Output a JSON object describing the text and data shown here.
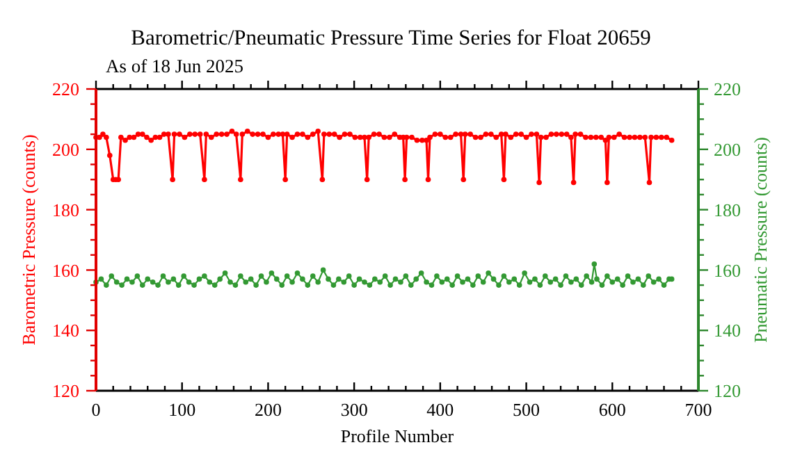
{
  "chart_data": {
    "type": "line",
    "title": "Barometric/Pneumatic Pressure Time Series for Float 20659",
    "subtitle": "As of 18 Jun 2025",
    "xlabel": "Profile Number",
    "ylabel": "Barometric Pressure (counts)",
    "y2label": "Pneumatic Pressure (counts)",
    "marker": "circle",
    "xlim": [
      0,
      700
    ],
    "xticks": [
      0,
      {
        "value": 20,
        "label": null
      },
      {
        "value": 40,
        "label": null
      },
      {
        "value": 60,
        "label": null
      },
      {
        "value": 80,
        "label": null
      },
      100,
      {
        "value": 120,
        "label": null
      },
      {
        "value": 140,
        "label": null
      },
      {
        "value": 160,
        "label": null
      },
      {
        "value": 180,
        "label": null
      },
      200,
      {
        "value": 220,
        "label": null
      },
      {
        "value": 240,
        "label": null
      },
      {
        "value": 260,
        "label": null
      },
      {
        "value": 280,
        "label": null
      },
      300,
      {
        "value": 320,
        "label": null
      },
      {
        "value": 340,
        "label": null
      },
      {
        "value": 360,
        "label": null
      },
      {
        "value": 380,
        "label": null
      },
      400,
      {
        "value": 420,
        "label": null
      },
      {
        "value": 440,
        "label": null
      },
      {
        "value": 460,
        "label": null
      },
      {
        "value": 480,
        "label": null
      },
      500,
      {
        "value": 520,
        "label": null
      },
      {
        "value": 540,
        "label": null
      },
      {
        "value": 560,
        "label": null
      },
      {
        "value": 580,
        "label": null
      },
      600,
      {
        "value": 620,
        "label": null
      },
      {
        "value": 640,
        "label": null
      },
      {
        "value": 660,
        "label": null
      },
      {
        "value": 680,
        "label": null
      },
      700
    ],
    "ylim": [
      120,
      220
    ],
    "yticks": [
      120,
      {
        "value": 125,
        "label": null
      },
      {
        "value": 130,
        "label": null
      },
      {
        "value": 135,
        "label": null
      },
      140,
      {
        "value": 145,
        "label": null
      },
      {
        "value": 150,
        "label": null
      },
      {
        "value": 155,
        "label": null
      },
      160,
      {
        "value": 165,
        "label": null
      },
      {
        "value": 170,
        "label": null
      },
      {
        "value": 175,
        "label": null
      },
      180,
      {
        "value": 185,
        "label": null
      },
      {
        "value": 190,
        "label": null
      },
      {
        "value": 195,
        "label": null
      },
      200,
      {
        "value": 205,
        "label": null
      },
      {
        "value": 210,
        "label": null
      },
      {
        "value": 215,
        "label": null
      },
      220
    ],
    "y2lim": [
      120,
      220
    ],
    "y2ticks": [
      120,
      {
        "value": 125,
        "label": null
      },
      {
        "value": 130,
        "label": null
      },
      {
        "value": 135,
        "label": null
      },
      140,
      {
        "value": 145,
        "label": null
      },
      {
        "value": 150,
        "label": null
      },
      {
        "value": 155,
        "label": null
      },
      160,
      {
        "value": 165,
        "label": null
      },
      {
        "value": 170,
        "label": null
      },
      {
        "value": 175,
        "label": null
      },
      180,
      {
        "value": 185,
        "label": null
      },
      {
        "value": 190,
        "label": null
      },
      {
        "value": 195,
        "label": null
      },
      200,
      {
        "value": 205,
        "label": null
      },
      {
        "value": 210,
        "label": null
      },
      {
        "value": 215,
        "label": null
      },
      220
    ],
    "series": [
      {
        "color": "#ff0000",
        "x": [
          0,
          4,
          8,
          12,
          16,
          20,
          23,
          26,
          29,
          34,
          39,
          44,
          49,
          54,
          59,
          64,
          69,
          74,
          79,
          84,
          89,
          91,
          97,
          103,
          109,
          115,
          121,
          126,
          128,
          134,
          140,
          146,
          152,
          158,
          163,
          168,
          170,
          176,
          182,
          188,
          194,
          200,
          206,
          212,
          217,
          220,
          222,
          228,
          234,
          240,
          246,
          252,
          258,
          263,
          265,
          271,
          277,
          283,
          289,
          295,
          301,
          307,
          312,
          315,
          317,
          323,
          329,
          335,
          341,
          347,
          353,
          357,
          359,
          361,
          367,
          373,
          379,
          384,
          386,
          388,
          394,
          400,
          406,
          412,
          418,
          424,
          427,
          429,
          435,
          441,
          447,
          453,
          459,
          465,
          471,
          474,
          476,
          482,
          488,
          494,
          500,
          506,
          512,
          515,
          517,
          523,
          529,
          535,
          541,
          547,
          552,
          555,
          557,
          563,
          569,
          575,
          581,
          587,
          592,
          594,
          596,
          602,
          608,
          614,
          620,
          626,
          632,
          638,
          643,
          645,
          651,
          657,
          663,
          669
        ],
        "values": [
          204,
          204,
          205,
          204,
          198,
          190,
          190,
          190,
          204,
          203,
          204,
          204,
          205,
          205,
          204,
          203,
          204,
          204,
          205,
          205,
          190,
          205,
          205,
          204,
          205,
          205,
          205,
          190,
          205,
          204,
          205,
          205,
          205,
          206,
          205,
          190,
          205,
          206,
          205,
          205,
          205,
          204,
          205,
          205,
          205,
          190,
          205,
          204,
          205,
          205,
          204,
          205,
          206,
          190,
          205,
          205,
          205,
          204,
          205,
          205,
          204,
          204,
          204,
          190,
          204,
          205,
          205,
          204,
          204,
          205,
          204,
          204,
          190,
          204,
          204,
          203,
          203,
          203,
          190,
          204,
          205,
          205,
          204,
          204,
          205,
          205,
          190,
          205,
          205,
          204,
          204,
          205,
          205,
          204,
          205,
          190,
          205,
          204,
          205,
          205,
          204,
          205,
          205,
          189,
          204,
          204,
          205,
          205,
          205,
          205,
          204,
          189,
          205,
          205,
          204,
          204,
          204,
          204,
          203,
          189,
          204,
          204,
          205,
          204,
          204,
          204,
          204,
          204,
          189,
          204,
          204,
          204,
          204,
          203
        ]
      },
      {
        "color": "#339933",
        "axis": "y2",
        "x": [
          0,
          6,
          12,
          18,
          24,
          30,
          36,
          42,
          48,
          54,
          60,
          66,
          72,
          78,
          84,
          90,
          96,
          102,
          108,
          114,
          120,
          126,
          132,
          138,
          144,
          150,
          156,
          162,
          168,
          174,
          180,
          186,
          192,
          198,
          204,
          210,
          216,
          222,
          228,
          234,
          240,
          246,
          252,
          258,
          264,
          270,
          276,
          282,
          288,
          294,
          300,
          306,
          312,
          318,
          324,
          330,
          336,
          342,
          348,
          354,
          360,
          366,
          372,
          378,
          384,
          390,
          396,
          402,
          408,
          414,
          420,
          426,
          432,
          438,
          444,
          450,
          456,
          462,
          468,
          474,
          480,
          486,
          492,
          498,
          504,
          510,
          516,
          522,
          528,
          534,
          540,
          546,
          552,
          558,
          564,
          570,
          576,
          579,
          582,
          588,
          594,
          600,
          606,
          612,
          618,
          624,
          630,
          636,
          642,
          648,
          654,
          660,
          666,
          669
        ],
        "values": [
          156,
          157,
          155,
          158,
          156,
          155,
          157,
          156,
          158,
          155,
          157,
          156,
          155,
          158,
          156,
          157,
          155,
          158,
          156,
          155,
          157,
          158,
          156,
          155,
          157,
          159,
          156,
          155,
          158,
          156,
          157,
          155,
          158,
          156,
          159,
          157,
          155,
          158,
          156,
          159,
          157,
          155,
          158,
          156,
          160,
          157,
          155,
          157,
          156,
          158,
          155,
          157,
          156,
          155,
          157,
          156,
          158,
          155,
          157,
          156,
          158,
          155,
          157,
          159,
          156,
          155,
          158,
          156,
          157,
          155,
          158,
          156,
          157,
          155,
          158,
          156,
          159,
          157,
          155,
          158,
          156,
          157,
          155,
          159,
          156,
          157,
          155,
          158,
          156,
          157,
          155,
          158,
          156,
          157,
          155,
          158,
          156,
          162,
          157,
          155,
          158,
          156,
          157,
          155,
          158,
          156,
          157,
          155,
          158,
          156,
          157,
          155,
          157,
          157
        ]
      }
    ]
  }
}
